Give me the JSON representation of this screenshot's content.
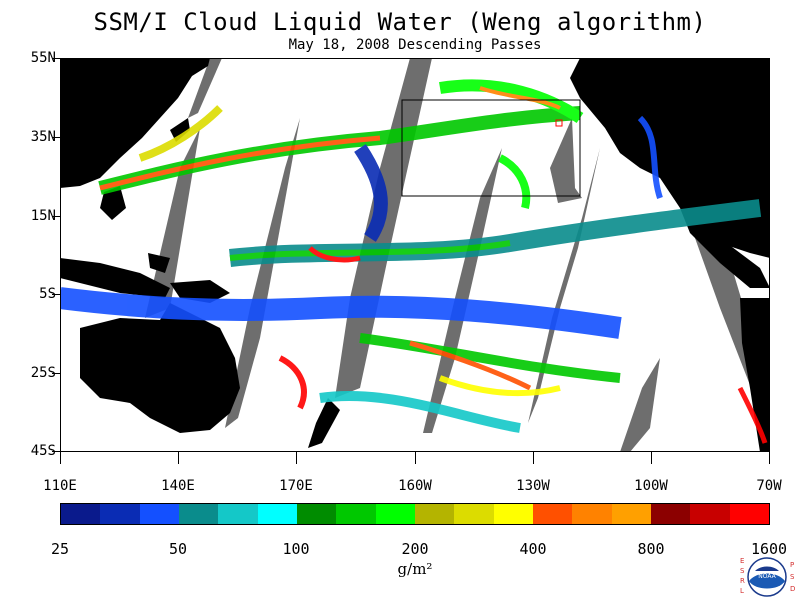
{
  "title": "SSM/I Cloud Liquid Water (Weng algorithm)",
  "subtitle": "May 18, 2008  Descending Passes",
  "y_axis_labels": [
    "55N",
    "35N",
    "15N",
    "5S",
    "25S",
    "45S"
  ],
  "x_axis_labels": [
    "110E",
    "140E",
    "170E",
    "160W",
    "130W",
    "100W",
    "70W"
  ],
  "colorbar": {
    "colors": [
      "#0a1a8c",
      "#0a2cb4",
      "#1450ff",
      "#0a8c8c",
      "#14c8c8",
      "#00ffff",
      "#008c00",
      "#00c800",
      "#00ff00",
      "#b4b400",
      "#dcdc00",
      "#ffff00",
      "#ff5000",
      "#ff8200",
      "#ffa000",
      "#8c0000",
      "#c80000",
      "#ff0000"
    ],
    "tick_labels": [
      "25",
      "50",
      "100",
      "200",
      "400",
      "800",
      "1600"
    ],
    "units": "g/m²"
  },
  "logo": {
    "left_letters": "ESRL",
    "right_letters": "PSD",
    "center": "NOAA"
  }
}
